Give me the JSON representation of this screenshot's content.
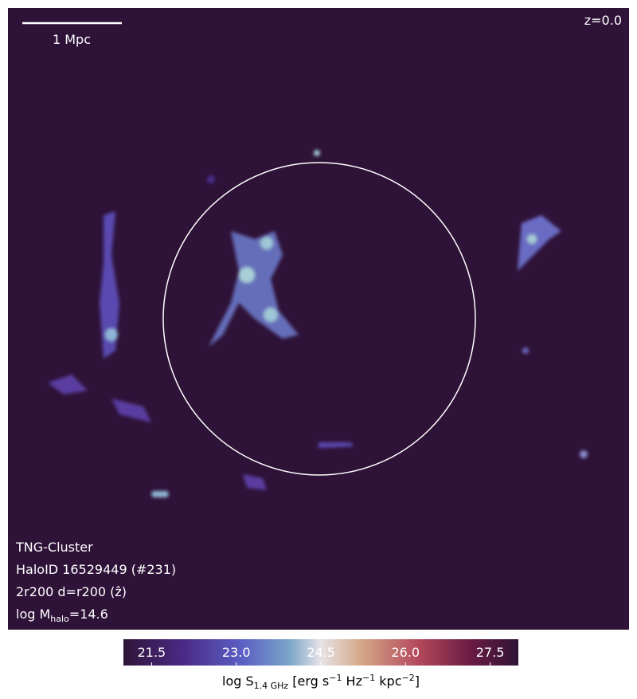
{
  "image": {
    "scale_bar": "1 Mpc",
    "redshift": "z=0.0",
    "info": {
      "simulation": "TNG-Cluster",
      "halo": "HaloID 16529449 (#231)",
      "projection": "2r200 d=r200 (ẑ)",
      "mass": {
        "prefix": "log M",
        "sub": "halo",
        "suffix": "=14.6"
      }
    }
  },
  "colorbar": {
    "lim": [
      21,
      28
    ],
    "ticks": [
      21.5,
      {
        "value": 23,
        "label": "23.0"
      },
      24.5,
      {
        "value": 26,
        "label": "26.0"
      },
      27.5
    ],
    "label": {
      "a": "log S",
      "sub": "1.4 GHz",
      "b": " [erg s",
      "s1": "−1",
      "c": " Hz",
      "s2": "−1",
      "d": " kpc",
      "s3": "−2",
      "e": "]"
    }
  }
}
